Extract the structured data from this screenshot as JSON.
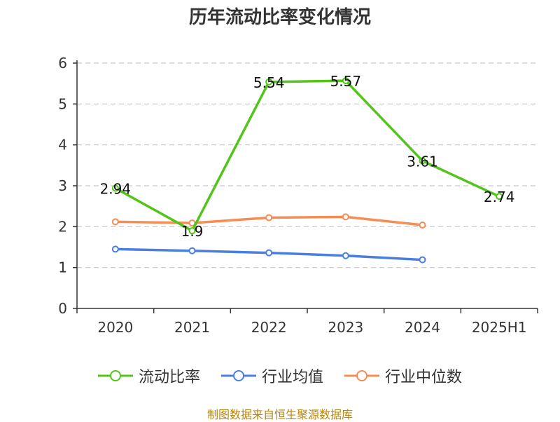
{
  "chart_data": {
    "type": "line",
    "title": "历年流动比率变化情况",
    "categories": [
      "2020",
      "2021",
      "2022",
      "2023",
      "2024",
      "2025H1"
    ],
    "ylim": [
      0,
      6
    ],
    "yticks": [
      "0",
      "1",
      "2",
      "3",
      "4",
      "5",
      "6"
    ],
    "grid": true,
    "legend_position": "bottom",
    "series": [
      {
        "name": "流动比率",
        "color": "#52c41a",
        "values": [
          2.94,
          1.9,
          5.54,
          5.57,
          3.61,
          2.74
        ],
        "labels": [
          "2.94",
          "1.9",
          "5.54",
          "5.57",
          "3.61",
          "2.74"
        ]
      },
      {
        "name": "行业均值",
        "color": "#4a7fe0",
        "values": [
          1.45,
          1.41,
          1.36,
          1.29,
          1.19,
          null
        ]
      },
      {
        "name": "行业中位数",
        "color": "#f58d55",
        "values": [
          2.12,
          2.09,
          2.22,
          2.24,
          2.04,
          null
        ]
      }
    ]
  },
  "footer": {
    "source": "制图数据来自恒生聚源数据库"
  }
}
